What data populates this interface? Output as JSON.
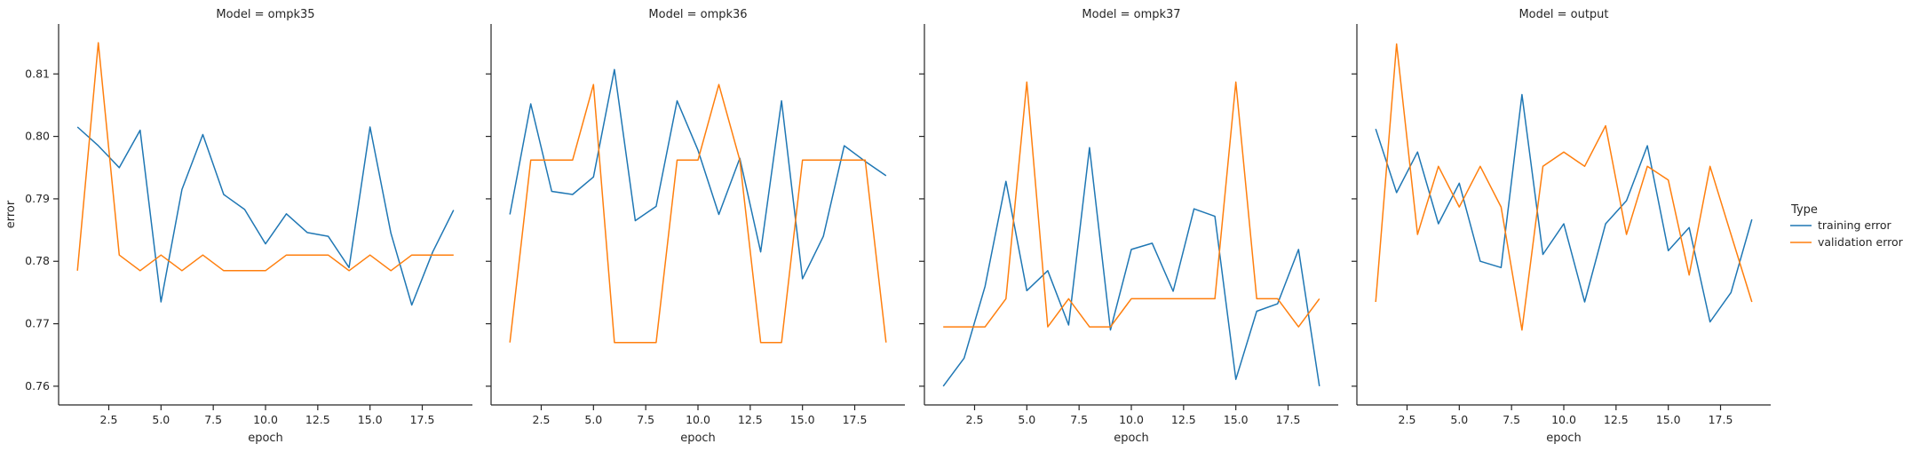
{
  "legend": {
    "title": "Type",
    "entries": [
      {
        "label": "training error",
        "color": "#1f77b4"
      },
      {
        "label": "validation error",
        "color": "#ff7f0e"
      }
    ]
  },
  "chart_data": [
    {
      "type": "line",
      "title": "Model = ompk35",
      "xlabel": "epoch",
      "ylabel": "error",
      "xlim": [
        0.1,
        19.9
      ],
      "ylim": [
        0.757,
        0.818
      ],
      "xticks": [
        "2.5",
        "5.0",
        "7.5",
        "10.0",
        "12.5",
        "15.0",
        "17.5"
      ],
      "yticks": [
        "0.76",
        "0.77",
        "0.78",
        "0.79",
        "0.80",
        "0.81"
      ],
      "x": [
        1,
        2,
        3,
        4,
        5,
        6,
        7,
        8,
        9,
        10,
        11,
        12,
        13,
        14,
        15,
        16,
        17,
        18,
        19
      ],
      "series": [
        {
          "name": "training error",
          "color": "#1f77b4",
          "values": [
            0.8015,
            0.7985,
            0.795,
            0.801,
            0.7735,
            0.7915,
            0.8003,
            0.7907,
            0.7883,
            0.7828,
            0.7876,
            0.7846,
            0.784,
            0.779,
            0.8015,
            0.7845,
            0.773,
            0.7815,
            0.7882
          ]
        },
        {
          "name": "validation error",
          "color": "#ff7f0e",
          "values": [
            0.7785,
            0.815,
            0.781,
            0.7785,
            0.781,
            0.7785,
            0.781,
            0.7785,
            0.7785,
            0.7785,
            0.781,
            0.781,
            0.781,
            0.7785,
            0.781,
            0.7785,
            0.781,
            0.781,
            0.781
          ]
        }
      ]
    },
    {
      "type": "line",
      "title": "Model = ompk36",
      "xlabel": "epoch",
      "ylabel": "",
      "xlim": [
        0.1,
        19.9
      ],
      "ylim": [
        0.757,
        0.818
      ],
      "xticks": [
        "2.5",
        "5.0",
        "7.5",
        "10.0",
        "12.5",
        "15.0",
        "17.5"
      ],
      "yticks": [
        "0.76",
        "0.77",
        "0.78",
        "0.79",
        "0.80",
        "0.81"
      ],
      "x": [
        1,
        2,
        3,
        4,
        5,
        6,
        7,
        8,
        9,
        10,
        11,
        12,
        13,
        14,
        15,
        16,
        17,
        18,
        19
      ],
      "series": [
        {
          "name": "training error",
          "color": "#1f77b4",
          "values": [
            0.7875,
            0.8052,
            0.7912,
            0.7907,
            0.7935,
            0.8107,
            0.7865,
            0.7888,
            0.8057,
            0.7978,
            0.7875,
            0.7965,
            0.7815,
            0.8057,
            0.7772,
            0.784,
            0.7985,
            0.796,
            0.7937
          ]
        },
        {
          "name": "validation error",
          "color": "#ff7f0e",
          "values": [
            0.767,
            0.7962,
            0.7962,
            0.7962,
            0.8083,
            0.767,
            0.767,
            0.767,
            0.7962,
            0.7962,
            0.8083,
            0.7962,
            0.767,
            0.767,
            0.7962,
            0.7962,
            0.7962,
            0.7962,
            0.767
          ]
        }
      ]
    },
    {
      "type": "line",
      "title": "Model = ompk37",
      "xlabel": "epoch",
      "ylabel": "",
      "xlim": [
        0.1,
        19.9
      ],
      "ylim": [
        0.757,
        0.818
      ],
      "xticks": [
        "2.5",
        "5.0",
        "7.5",
        "10.0",
        "12.5",
        "15.0",
        "17.5"
      ],
      "yticks": [
        "0.76",
        "0.77",
        "0.78",
        "0.79",
        "0.80",
        "0.81"
      ],
      "x": [
        1,
        2,
        3,
        4,
        5,
        6,
        7,
        8,
        9,
        10,
        11,
        12,
        13,
        14,
        15,
        16,
        17,
        18,
        19
      ],
      "series": [
        {
          "name": "training error",
          "color": "#1f77b4",
          "values": [
            0.76,
            0.7645,
            0.776,
            0.7928,
            0.7753,
            0.7785,
            0.7698,
            0.7982,
            0.769,
            0.7819,
            0.7829,
            0.7752,
            0.7884,
            0.7872,
            0.7611,
            0.772,
            0.7732,
            0.7819,
            0.76
          ]
        },
        {
          "name": "validation error",
          "color": "#ff7f0e",
          "values": [
            0.7695,
            0.7695,
            0.7695,
            0.774,
            0.8087,
            0.7695,
            0.774,
            0.7695,
            0.7695,
            0.774,
            0.774,
            0.774,
            0.774,
            0.774,
            0.8087,
            0.774,
            0.774,
            0.7695,
            0.774
          ]
        }
      ]
    },
    {
      "type": "line",
      "title": "Model = output",
      "xlabel": "epoch",
      "ylabel": "",
      "xlim": [
        0.1,
        19.9
      ],
      "ylim": [
        0.757,
        0.818
      ],
      "xticks": [
        "2.5",
        "5.0",
        "7.5",
        "10.0",
        "12.5",
        "15.0",
        "17.5"
      ],
      "yticks": [
        "0.76",
        "0.77",
        "0.78",
        "0.79",
        "0.80",
        "0.81"
      ],
      "x": [
        1,
        2,
        3,
        4,
        5,
        6,
        7,
        8,
        9,
        10,
        11,
        12,
        13,
        14,
        15,
        16,
        17,
        18,
        19
      ],
      "series": [
        {
          "name": "training error",
          "color": "#1f77b4",
          "values": [
            0.8012,
            0.791,
            0.7975,
            0.786,
            0.7925,
            0.78,
            0.779,
            0.8067,
            0.7811,
            0.786,
            0.7735,
            0.786,
            0.7897,
            0.7985,
            0.7817,
            0.7854,
            0.7703,
            0.775,
            0.7867
          ]
        },
        {
          "name": "validation error",
          "color": "#ff7f0e",
          "values": [
            0.7735,
            0.8148,
            0.7843,
            0.7952,
            0.7887,
            0.7952,
            0.7887,
            0.769,
            0.7952,
            0.7975,
            0.7952,
            0.8017,
            0.7843,
            0.7952,
            0.793,
            0.7778,
            0.7952,
            0.7843,
            0.7735
          ]
        }
      ]
    }
  ]
}
